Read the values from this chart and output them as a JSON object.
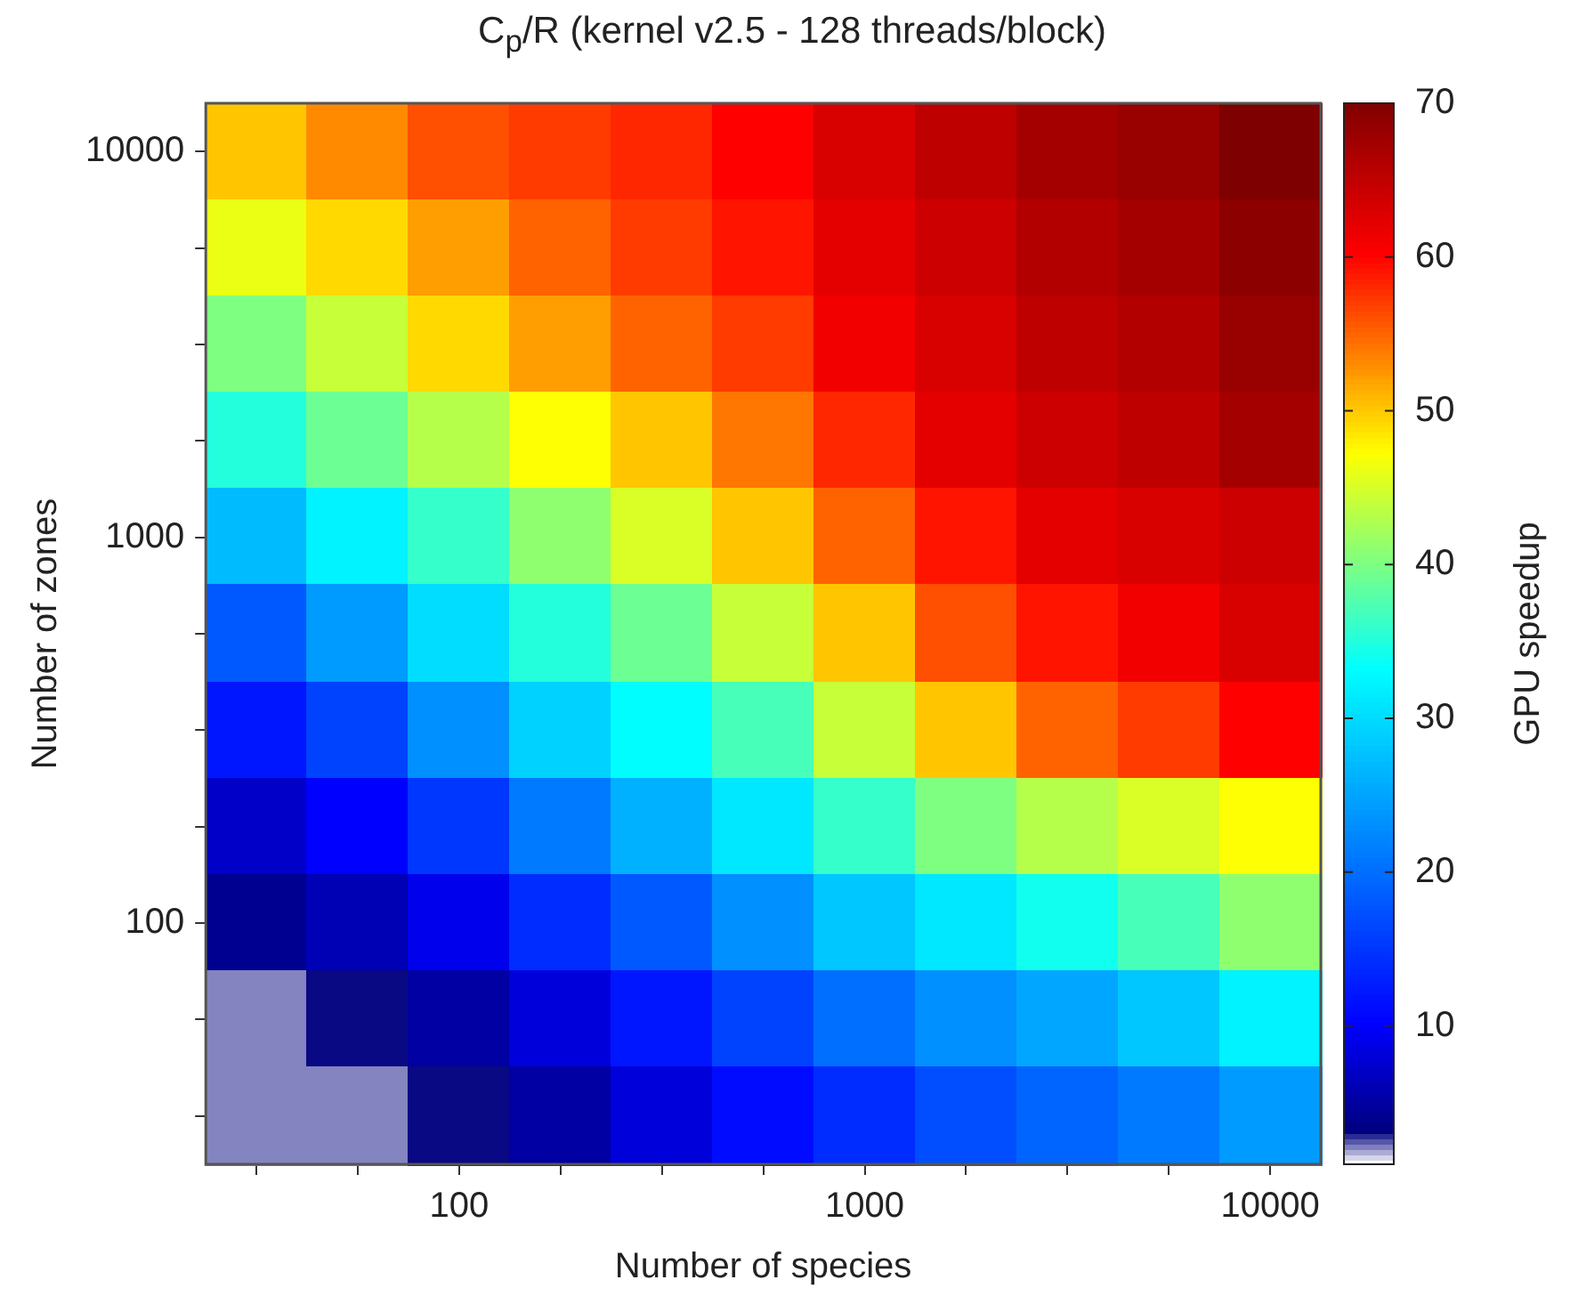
{
  "chart_data": {
    "type": "heatmap",
    "title": "C$_{p}$/R (kernel v2.5 - 128 threads/block)",
    "xlabel": "Number of species",
    "ylabel": "Number of zones",
    "clabel": "GPU speedup",
    "categories": [
      null,
      null,
      "100",
      null,
      null,
      null,
      "1000",
      null,
      null,
      null,
      "10000"
    ],
    "y_categories": [
      "10000",
      null,
      null,
      null,
      "1000",
      null,
      null,
      null,
      "100",
      null,
      null
    ],
    "cells": [
      [
        50,
        53,
        56,
        57,
        58,
        60,
        63,
        65,
        67,
        68,
        70
      ],
      [
        46,
        49,
        52,
        55,
        57,
        59,
        62,
        64,
        66,
        67,
        69
      ],
      [
        40,
        44,
        49,
        52,
        55,
        57,
        61,
        63,
        65,
        66,
        68
      ],
      [
        35,
        39,
        43,
        47,
        50,
        54,
        58,
        62,
        64,
        65,
        67
      ],
      [
        27,
        32,
        36,
        41,
        45,
        50,
        55,
        59,
        62,
        63,
        64
      ],
      [
        18,
        24,
        30,
        35,
        39,
        44,
        50,
        56,
        59,
        61,
        63
      ],
      [
        12,
        16,
        23,
        29,
        33,
        37,
        44,
        50,
        55,
        57,
        60
      ],
      [
        7,
        10,
        15,
        21,
        26,
        31,
        36,
        40,
        43,
        45,
        47
      ],
      [
        4,
        6,
        9,
        14,
        18,
        23,
        28,
        31,
        34,
        37,
        41
      ],
      [
        2,
        3,
        5,
        8,
        12,
        16,
        20,
        23,
        25,
        28,
        32
      ],
      [
        2,
        2,
        3,
        5,
        8,
        11,
        14,
        17,
        19,
        21,
        24
      ]
    ],
    "clim": [
      1,
      70
    ],
    "cticks": [
      10,
      20,
      30,
      40,
      50,
      60,
      70
    ]
  }
}
